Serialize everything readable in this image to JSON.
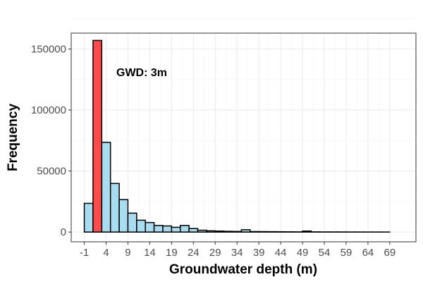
{
  "chart_data": {
    "type": "bar",
    "title": "",
    "xlabel": "Groundwater depth (m)",
    "ylabel": "Frequency",
    "binwidth": 2,
    "bin_start": -1,
    "values": [
      23500,
      157000,
      73500,
      39800,
      26600,
      15500,
      9700,
      7800,
      5400,
      5000,
      3900,
      5400,
      2900,
      1500,
      1000,
      800,
      600,
      500,
      1900,
      400,
      350,
      300,
      250,
      200,
      150,
      800,
      150,
      100,
      100,
      80,
      60,
      50,
      40,
      30,
      20
    ],
    "highlight_index": 1,
    "highlight_color": "#FF4B4B",
    "fill_color": "#A8DCF0",
    "annotation": "GWD: 3m",
    "x_ticks": [
      "-1",
      "4",
      "9",
      "14",
      "19",
      "24",
      "29",
      "34",
      "39",
      "44",
      "49",
      "54",
      "59",
      "64",
      "69"
    ],
    "y_ticks": [
      "0",
      "50000",
      "100000",
      "150000"
    ],
    "xlim": [
      -4,
      75
    ],
    "ylim": [
      -8000,
      163000
    ],
    "grid": true,
    "legend": "none"
  }
}
